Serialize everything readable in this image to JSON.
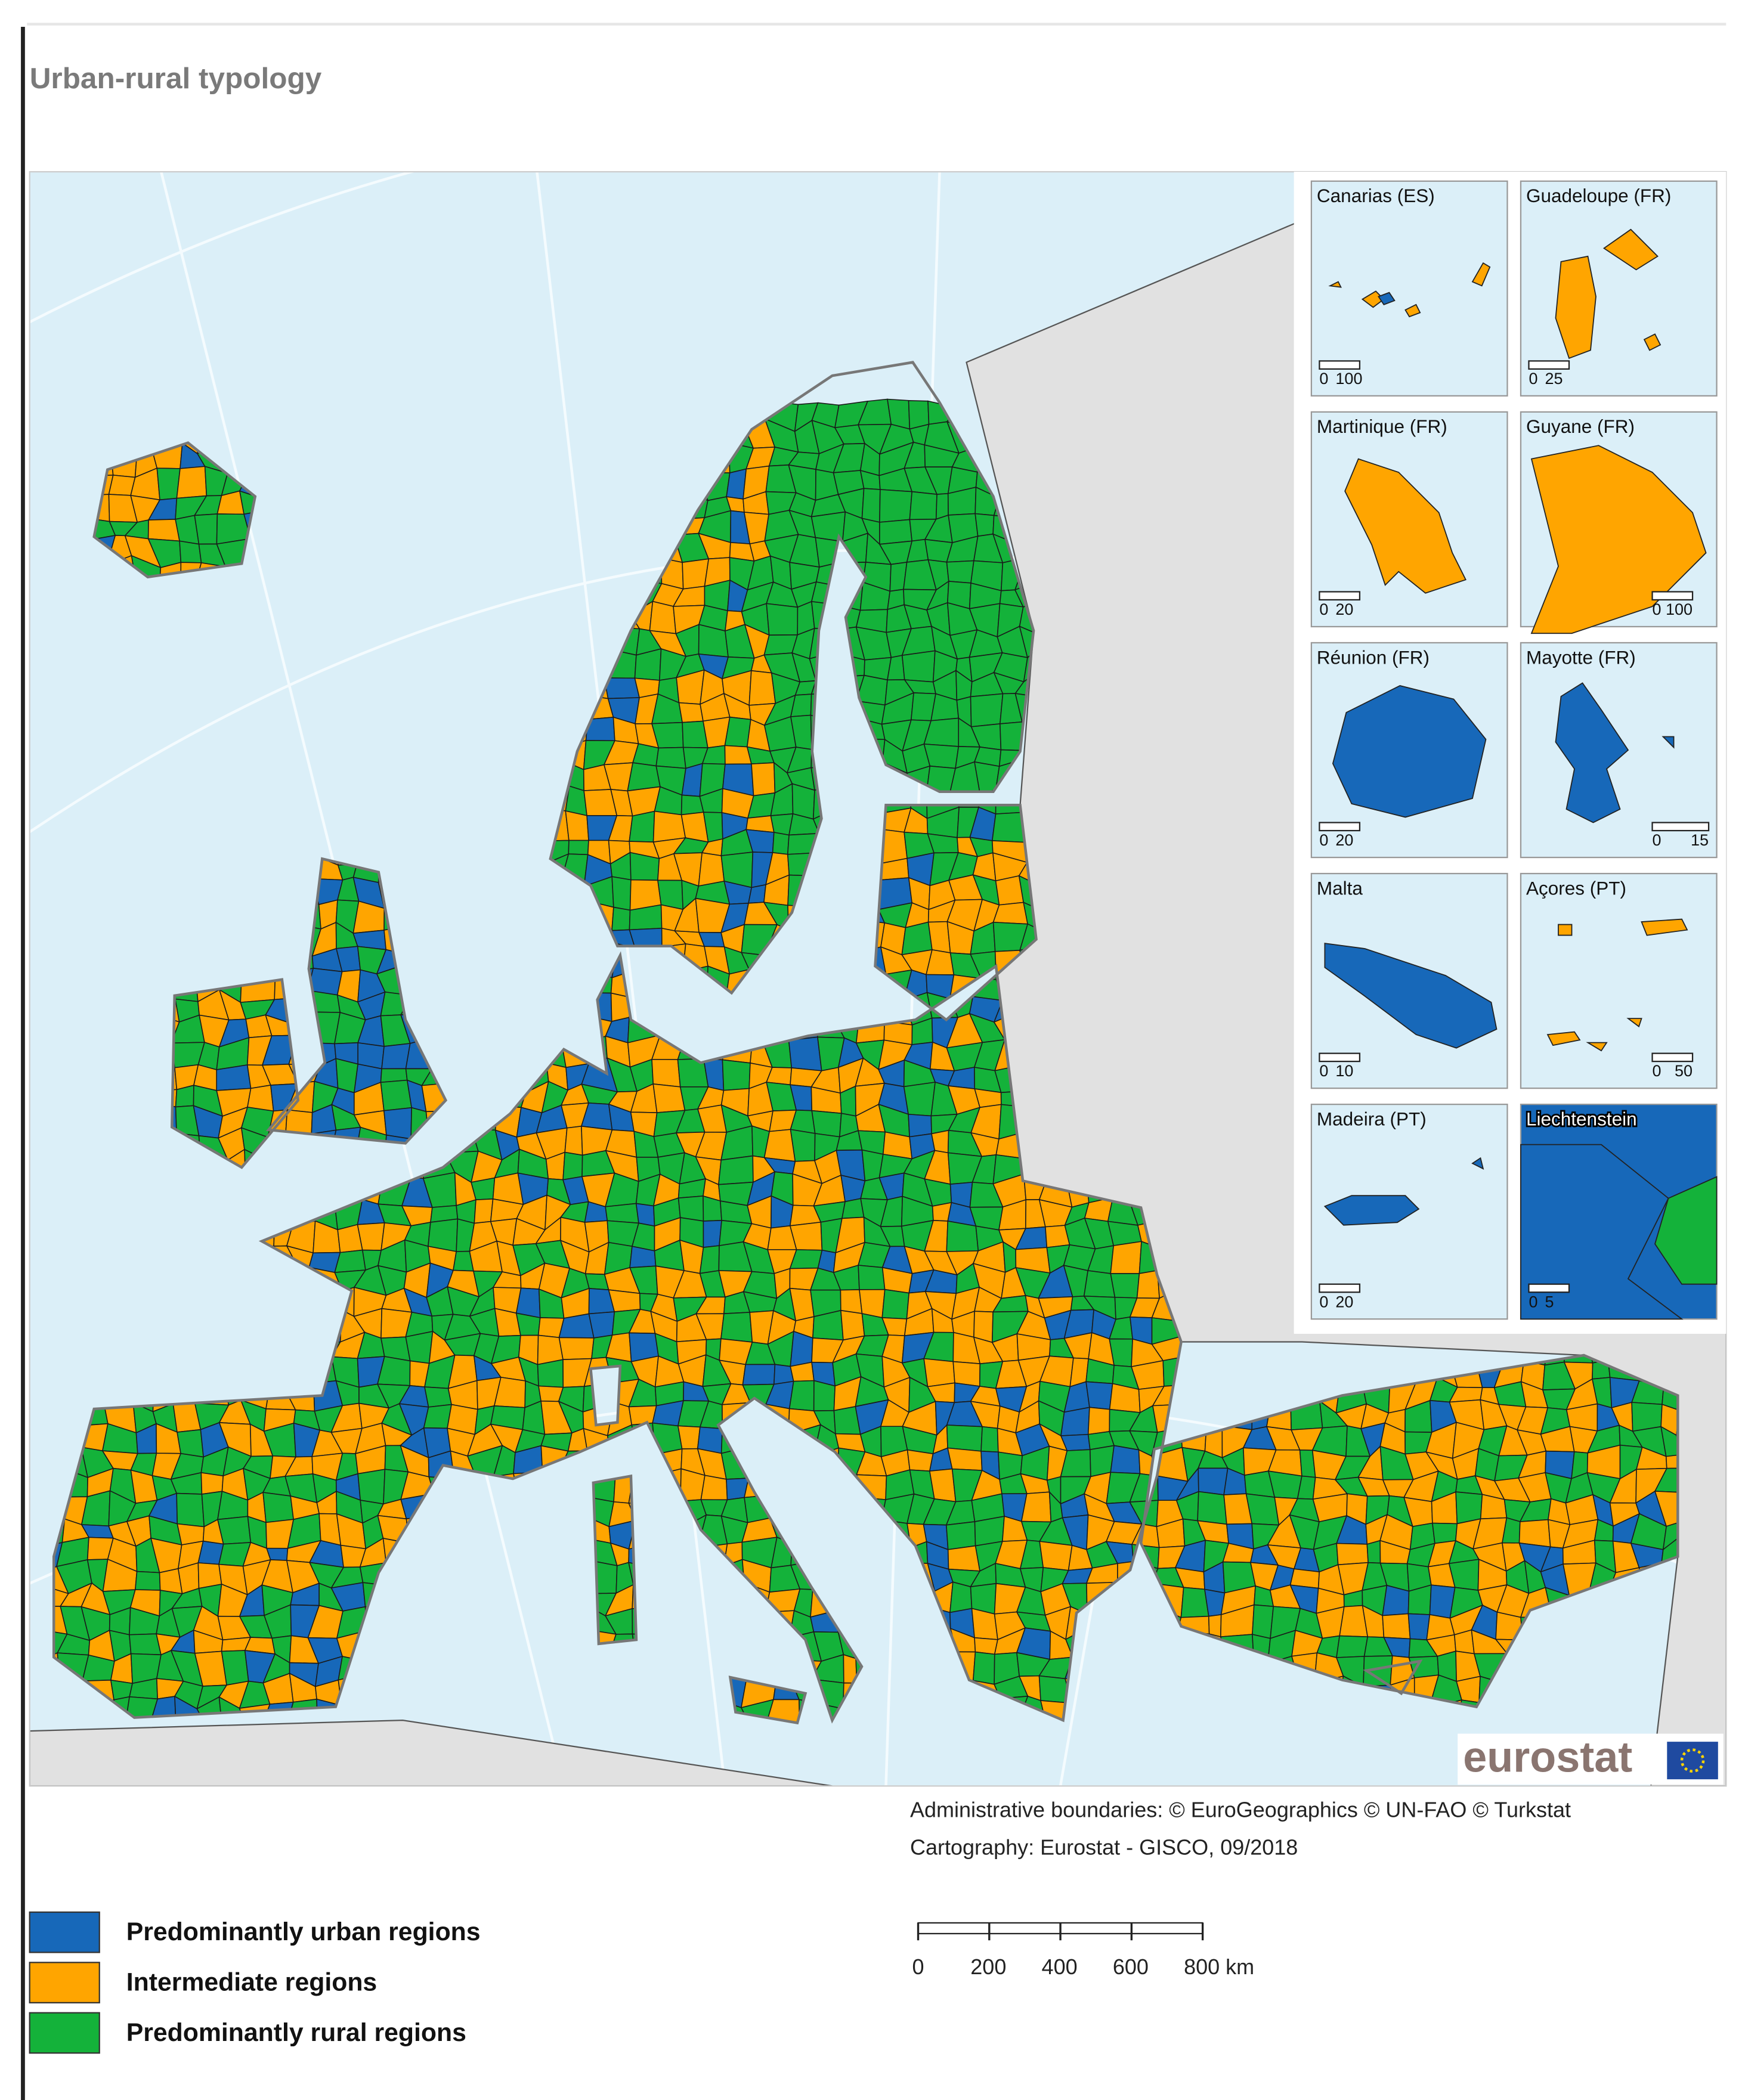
{
  "title": "Urban-rural typology",
  "insets": [
    {
      "label": "Canarias (ES)",
      "scale": [
        "0",
        "100"
      ]
    },
    {
      "label": "Guadeloupe (FR)",
      "scale": [
        "0",
        "25"
      ]
    },
    {
      "label": "Martinique (FR)",
      "scale": [
        "0",
        "20"
      ]
    },
    {
      "label": "Guyane (FR)",
      "scale": [
        "0",
        "100"
      ]
    },
    {
      "label": "Réunion (FR)",
      "scale": [
        "0",
        "20"
      ]
    },
    {
      "label": "Mayotte (FR)",
      "scale": [
        "0",
        "15"
      ]
    },
    {
      "label": "Malta",
      "scale": [
        "0",
        "10"
      ]
    },
    {
      "label": "Açores (PT)",
      "scale": [
        "0",
        "50"
      ]
    },
    {
      "label": "Madeira (PT)",
      "scale": [
        "0",
        "20"
      ]
    },
    {
      "label": "Liechtenstein",
      "scale": [
        "0",
        "5"
      ]
    }
  ],
  "credits": [
    "Administrative boundaries: © EuroGeographics © UN-FAO © Turkstat",
    "Cartography: Eurostat - GISCO, 09/2018"
  ],
  "logo": "eurostat",
  "scale_bar": [
    "0",
    "200",
    "400",
    "600",
    "800 km"
  ],
  "legend": [
    {
      "label": "Predominantly urban regions",
      "color": "#1768b9"
    },
    {
      "label": "Intermediate regions",
      "color": "#ffa500"
    },
    {
      "label": "Predominantly rural regions",
      "color": "#14b23a"
    }
  ]
}
